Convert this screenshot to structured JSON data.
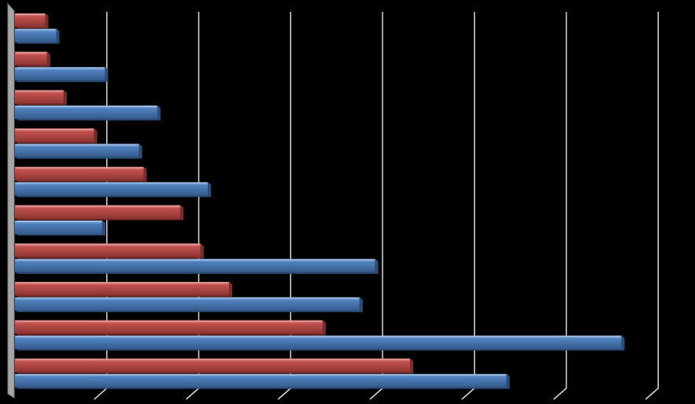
{
  "chart_data": {
    "type": "bar",
    "orientation": "horizontal",
    "style": "3d",
    "title": "",
    "xlabel": "",
    "ylabel": "",
    "grid": true,
    "legend": "none",
    "categories": [
      "",
      "",
      "",
      "",
      "",
      "",
      "",
      "",
      "",
      ""
    ],
    "xlim": [
      0,
      700
    ],
    "gridlines": [
      100,
      200,
      300,
      400,
      500,
      600,
      700
    ],
    "series": [
      {
        "color": "#c0504d",
        "values": [
          33,
          35,
          53,
          86,
          140,
          180,
          202,
          233,
          335,
          430
        ]
      },
      {
        "color": "#4f81bd",
        "values": [
          45,
          98,
          155,
          135,
          210,
          95,
          392,
          375,
          660,
          535
        ]
      }
    ]
  }
}
